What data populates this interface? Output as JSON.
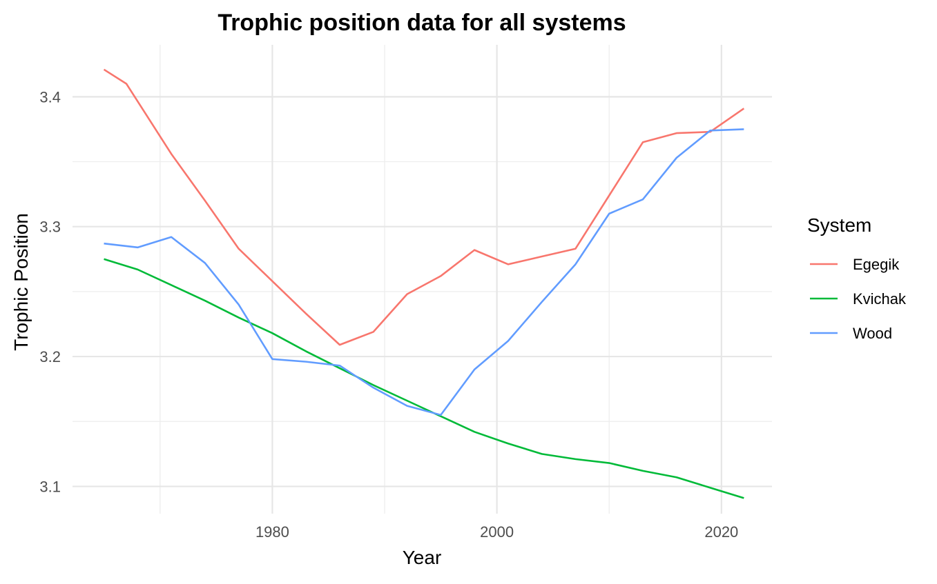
{
  "chart_data": {
    "type": "line",
    "title": "Trophic position data for all systems",
    "xlabel": "Year",
    "ylabel": "Trophic Position",
    "xlim": [
      1962.2,
      2024.5
    ],
    "ylim": [
      3.079,
      3.44
    ],
    "x_major_ticks": [
      1980,
      2000,
      2020
    ],
    "x_minor_ticks": [
      1970,
      1990,
      2010
    ],
    "y_major_ticks": [
      3.1,
      3.2,
      3.3,
      3.4
    ],
    "y_minor_ticks": [
      3.15,
      3.25,
      3.35
    ],
    "x_tick_labels": [
      "1980",
      "2000",
      "2020"
    ],
    "y_tick_labels": [
      "3.1",
      "3.2",
      "3.3",
      "3.4"
    ],
    "grid": true,
    "legend": {
      "title": "System",
      "placement": "right",
      "entries": [
        "Egegik",
        "Kvichak",
        "Wood"
      ]
    },
    "series": [
      {
        "name": "Egegik",
        "color": "#F8766D",
        "x": [
          1965,
          1967,
          1971,
          1974,
          1977,
          1980,
          1983,
          1986,
          1989,
          1992,
          1995,
          1998,
          2001,
          2004,
          2007,
          2010,
          2013,
          2016,
          2019,
          2022
        ],
        "values": [
          3.421,
          3.41,
          3.356,
          3.32,
          3.283,
          3.258,
          3.233,
          3.209,
          3.219,
          3.248,
          3.262,
          3.282,
          3.271,
          3.277,
          3.283,
          3.324,
          3.365,
          3.372,
          3.373,
          3.391
        ]
      },
      {
        "name": "Kvichak",
        "color": "#00BA38",
        "x": [
          1965,
          1968,
          1971,
          1974,
          1977,
          1980,
          1983,
          1986,
          1989,
          1992,
          1995,
          1998,
          2001,
          2004,
          2007,
          2010,
          2013,
          2016,
          2019,
          2022
        ],
        "values": [
          3.275,
          3.267,
          3.255,
          3.243,
          3.23,
          3.218,
          3.204,
          3.191,
          3.178,
          3.166,
          3.154,
          3.142,
          3.133,
          3.125,
          3.121,
          3.118,
          3.112,
          3.107,
          3.099,
          3.091
        ]
      },
      {
        "name": "Wood",
        "color": "#619CFF",
        "x": [
          1965,
          1968,
          1971,
          1974,
          1977,
          1980,
          1983,
          1986,
          1989,
          1992,
          1995,
          1998,
          2001,
          2004,
          2007,
          2010,
          2013,
          2016,
          2019,
          2022
        ],
        "values": [
          3.287,
          3.284,
          3.292,
          3.272,
          3.24,
          3.198,
          3.196,
          3.193,
          3.176,
          3.162,
          3.155,
          3.19,
          3.212,
          3.242,
          3.271,
          3.31,
          3.321,
          3.353,
          3.374,
          3.375
        ]
      }
    ]
  }
}
